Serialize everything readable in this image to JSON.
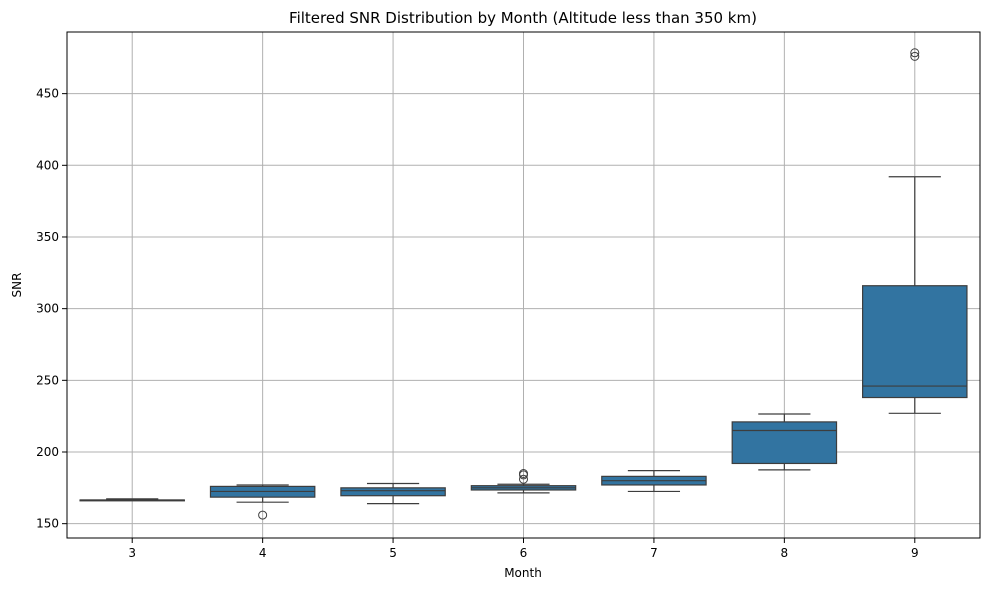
{
  "chart_data": {
    "type": "box",
    "title": "Filtered SNR Distribution by Month (Altitude less than 350 km)",
    "xlabel": "Month",
    "ylabel": "SNR",
    "categories": [
      "3",
      "4",
      "5",
      "6",
      "7",
      "8",
      "9"
    ],
    "ylim": [
      140,
      493
    ],
    "yticks": [
      150,
      200,
      250,
      300,
      350,
      400,
      450
    ],
    "grid": true,
    "box_color": "#3274a1",
    "edge_color": "#3d3d3d",
    "boxes": [
      {
        "month": "3",
        "whisker_low": 166.5,
        "q1": 166.5,
        "median": 166.5,
        "q3": 166.5,
        "whisker_high": 167.3,
        "outliers": []
      },
      {
        "month": "4",
        "whisker_low": 165,
        "q1": 168.5,
        "median": 172.5,
        "q3": 176,
        "whisker_high": 177,
        "outliers": [
          156
        ]
      },
      {
        "month": "5",
        "whisker_low": 164,
        "q1": 169.5,
        "median": 173,
        "q3": 175,
        "whisker_high": 178,
        "outliers": []
      },
      {
        "month": "6",
        "whisker_low": 171.5,
        "q1": 173.5,
        "median": 175,
        "q3": 176.5,
        "whisker_high": 177.5,
        "outliers": [
          181,
          184,
          185
        ]
      },
      {
        "month": "7",
        "whisker_low": 172.5,
        "q1": 177,
        "median": 180,
        "q3": 183,
        "whisker_high": 187,
        "outliers": []
      },
      {
        "month": "8",
        "whisker_low": 187.5,
        "q1": 192,
        "median": 215,
        "q3": 221,
        "whisker_high": 226.5,
        "outliers": []
      },
      {
        "month": "9",
        "whisker_low": 227,
        "q1": 238,
        "median": 246,
        "q3": 316,
        "whisker_high": 392,
        "outliers": [
          476,
          478.5
        ]
      }
    ]
  }
}
